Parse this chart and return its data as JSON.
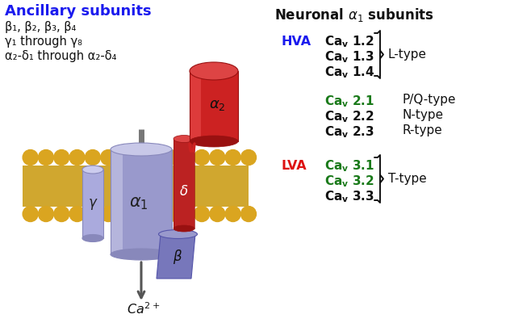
{
  "bg_color": "#ffffff",
  "title_ancillary": "Ancillary subunits",
  "ancillary_lines": [
    "β₁, β₂, β₃, β₄",
    "γ₁ through γ₈",
    "α₂-δ₁ through α₂-δ₄"
  ],
  "hva_label": "HVA",
  "hva_color": "#1a1aee",
  "lva_label": "LVA",
  "lva_color": "#dd1111",
  "green_color": "#1a7a1a",
  "black_color": "#111111",
  "hva_channels": [
    "1.2",
    "1.3",
    "1.4"
  ],
  "hva_type": "L-type",
  "mid_channels": [
    "2.1",
    "2.2",
    "2.3"
  ],
  "mid_types": [
    "P/Q-type",
    "N-type",
    "R-type"
  ],
  "mid_green": [
    true,
    false,
    false
  ],
  "lva_channels": [
    "3.1",
    "3.2",
    "3.3"
  ],
  "lva_type": "T-type",
  "lva_green": [
    true,
    true,
    false
  ],
  "membrane_color": "#DAA520",
  "membrane_tail_color": "#c8980a",
  "alpha1_color": "#9999cc",
  "alpha1_light": "#c8c8e8",
  "alpha1_dark": "#8888bb",
  "gamma_color": "#aaaadd",
  "gamma_dark": "#8888bb",
  "beta_color": "#7777bb",
  "delta_color": "#bb2222",
  "alpha2_body_color": "#cc2222",
  "alpha2_top_color": "#dd4444",
  "alpha2_dark": "#991111",
  "arrow_color": "#555555",
  "stem_color": "#777777"
}
